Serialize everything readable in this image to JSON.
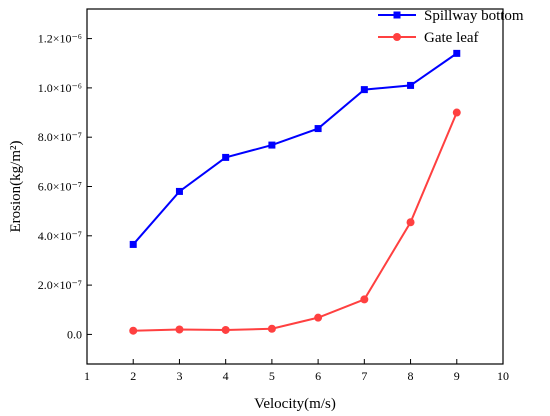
{
  "chart_data": {
    "type": "line",
    "xlabel": "Velocity(m/s)",
    "ylabel": "Erosion(kg/m²)",
    "xlim": [
      1,
      10
    ],
    "ylim": [
      -1.2e-07,
      1.32e-06
    ],
    "x_ticks": [
      1,
      2,
      3,
      4,
      5,
      6,
      7,
      8,
      9,
      10
    ],
    "y_ticks": [
      {
        "value": 0,
        "label": "0.0"
      },
      {
        "value": 2e-07,
        "label": "2.0×10⁻⁷"
      },
      {
        "value": 4e-07,
        "label": "4.0×10⁻⁷"
      },
      {
        "value": 6e-07,
        "label": "6.0×10⁻⁷"
      },
      {
        "value": 8e-07,
        "label": "8.0×10⁻⁷"
      },
      {
        "value": 1e-06,
        "label": "1.0×10⁻⁶"
      },
      {
        "value": 1.2e-06,
        "label": "1.2×10⁻⁶"
      }
    ],
    "x": [
      2,
      3,
      4,
      5,
      6,
      7,
      8,
      9
    ],
    "series": [
      {
        "name": "Spillway bottom",
        "color": "#0000ff",
        "marker": "square",
        "values": [
          3.65e-07,
          5.8e-07,
          7.18e-07,
          7.68e-07,
          8.35e-07,
          9.93e-07,
          1.01e-06,
          1.14e-06
        ]
      },
      {
        "name": "Gate leaf",
        "color": "#ff4040",
        "marker": "circle",
        "values": [
          1.5e-08,
          2e-08,
          1.8e-08,
          2.3e-08,
          6.8e-08,
          1.42e-07,
          4.55e-07,
          9e-07
        ]
      }
    ],
    "grid": false,
    "legend_position": "top-right"
  }
}
